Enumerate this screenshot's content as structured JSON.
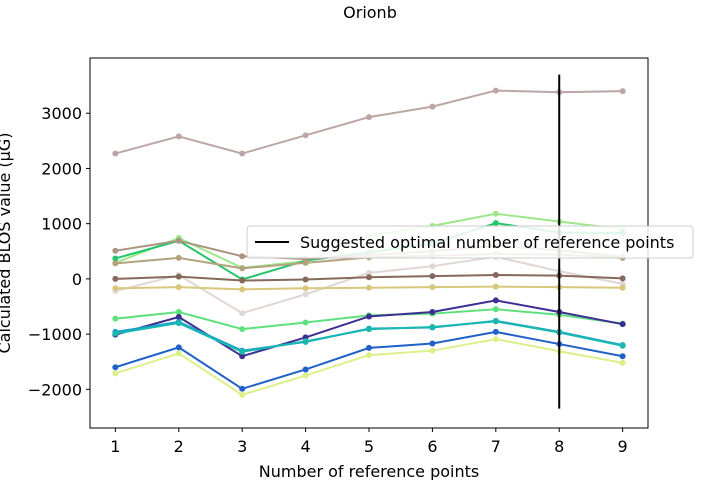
{
  "chart_data": {
    "type": "line",
    "title": "Orionb",
    "xlabel": "Number of reference points",
    "ylabel": "Calculated BLOS value (μG)",
    "x": [
      1,
      2,
      3,
      4,
      5,
      6,
      7,
      8,
      9
    ],
    "xlim": [
      0.6,
      9.4
    ],
    "ylim": [
      -2700,
      4000
    ],
    "xticks": [
      1,
      2,
      3,
      4,
      5,
      6,
      7,
      8,
      9
    ],
    "yticks": [
      -2000,
      -1000,
      0,
      1000,
      2000,
      3000
    ],
    "ytick_labels": [
      "−2000",
      "−1000",
      "0",
      "1000",
      "2000",
      "3000"
    ],
    "grid": false,
    "series": [
      {
        "color": "#bca6a3",
        "values": [
          2270,
          2580,
          2270,
          2600,
          2930,
          3120,
          3410,
          3380,
          3400
        ]
      },
      {
        "color": "#9de68a",
        "values": [
          290,
          740,
          200,
          320,
          780,
          960,
          1180,
          1040,
          900
        ]
      },
      {
        "color": "#23c56a",
        "values": [
          370,
          690,
          -10,
          330,
          480,
          640,
          1010,
          840,
          830
        ]
      },
      {
        "color": "#ab9480",
        "values": [
          510,
          690,
          410,
          360,
          430,
          500,
          600,
          520,
          400
        ]
      },
      {
        "color": "#b4a27e",
        "values": [
          280,
          380,
          190,
          290,
          390,
          420,
          450,
          440,
          380
        ]
      },
      {
        "color": "#e0d6d4",
        "values": [
          -220,
          70,
          -620,
          -280,
          110,
          230,
          400,
          140,
          -90
        ]
      },
      {
        "color": "#86695a",
        "values": [
          0,
          40,
          -30,
          -10,
          30,
          50,
          70,
          60,
          10
        ]
      },
      {
        "color": "#d8c77c",
        "values": [
          -170,
          -150,
          -190,
          -170,
          -160,
          -150,
          -140,
          -150,
          -160
        ]
      },
      {
        "color": "#5fe07e",
        "values": [
          -720,
          -600,
          -910,
          -790,
          -660,
          -630,
          -550,
          -650,
          -810
        ]
      },
      {
        "color": "#3c2f94",
        "values": [
          -1010,
          -690,
          -1400,
          -1060,
          -680,
          -600,
          -390,
          -600,
          -820
        ]
      },
      {
        "color": "#1a9ec8",
        "values": [
          -960,
          -780,
          -1300,
          -1140,
          -900,
          -880,
          -760,
          -960,
          -1200
        ]
      },
      {
        "color": "#19b8b0",
        "values": [
          -990,
          -800,
          -1320,
          -1130,
          -910,
          -870,
          -770,
          -970,
          -1210
        ]
      },
      {
        "color": "#2060c8",
        "values": [
          -1600,
          -1240,
          -1990,
          -1640,
          -1250,
          -1170,
          -960,
          -1180,
          -1400
        ]
      },
      {
        "color": "#dcf08a",
        "values": [
          -1710,
          -1350,
          -2100,
          -1750,
          -1380,
          -1300,
          -1090,
          -1310,
          -1520
        ]
      }
    ],
    "vline": {
      "x": 8,
      "ymin": -2350,
      "ymax": 3700,
      "color": "#000000"
    },
    "legend": {
      "label": "Suggested optimal number of reference points",
      "placement": "right"
    }
  }
}
